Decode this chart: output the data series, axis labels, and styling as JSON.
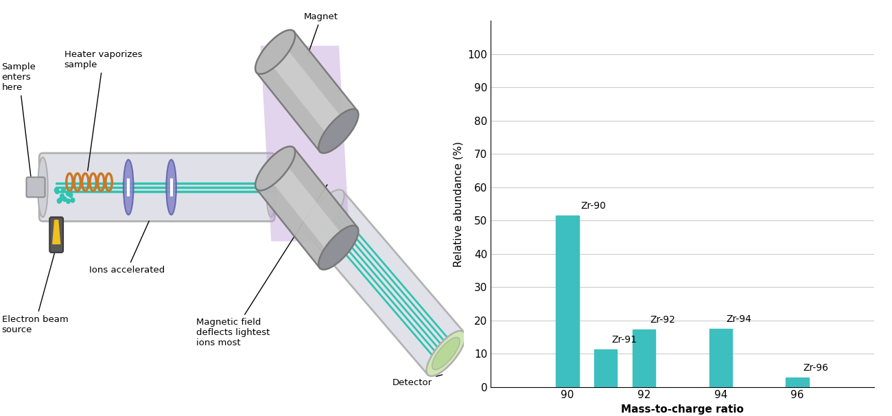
{
  "chart": {
    "isotopes": [
      "Zr-90",
      "Zr-91",
      "Zr-92",
      "Zr-94",
      "Zr-96"
    ],
    "mass_charge": [
      90,
      91,
      92,
      94,
      96
    ],
    "abundances": [
      51.45,
      11.22,
      17.15,
      17.38,
      2.8
    ],
    "bar_color": "#3dbfbf",
    "bar_width": 0.6,
    "xlabel": "Mass-to-charge ratio",
    "ylabel": "Relative abundance (%)",
    "xlim": [
      88,
      98
    ],
    "ylim": [
      0,
      110
    ],
    "yticks": [
      0,
      10,
      20,
      30,
      40,
      50,
      60,
      70,
      80,
      90,
      100
    ],
    "xticks": [
      90,
      92,
      94,
      96
    ],
    "grid_color": "#cccccc",
    "label_fontsize": 11,
    "tick_fontsize": 11,
    "annotation_fontsize": 10
  },
  "diagram": {
    "tube_color": "#e0e0e8",
    "tube_edge": "#b0b0b0",
    "teal": "#2ec4b0",
    "teal2": "#20a898",
    "blue_disk": "#8888cc",
    "copper": "#c87828",
    "yellow": "#f0c020",
    "magnet_gray": "#b8b8b8",
    "magnet_dark": "#787878",
    "purple": "#c0a0d8",
    "green_det": "#d0e8b0",
    "labels": {
      "sample_enters": "Sample\nenters\nhere",
      "heater": "Heater vaporizes\nsample",
      "ions_accel": "Ions accelerated",
      "electron_beam": "Electron beam\nsource",
      "magnet": "Magnet",
      "mag_deflect": "Magnetic field\ndeflects lightest\nions most",
      "detector": "Detector"
    }
  },
  "background_color": "#ffffff"
}
